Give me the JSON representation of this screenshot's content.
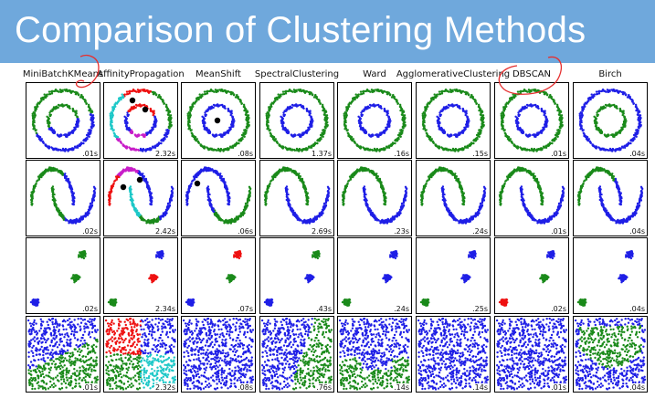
{
  "slide_title": "Comparison of Clustering Methods",
  "colors": {
    "header_bg": "#6fa8dc",
    "blue": "#1f1fe6",
    "green": "#1a8a1a",
    "red": "#ee1111",
    "cyan": "#1ec8c8",
    "magenta": "#c81ec8",
    "black": "#000000",
    "annotation": "#e53030"
  },
  "datasets": [
    "noisy-circles",
    "noisy-moons",
    "blobs",
    "no-structure"
  ],
  "methods": [
    {
      "name": "MiniBatchKMeans",
      "times": [
        ".01s",
        ".02s",
        ".02s",
        ".01s"
      ],
      "annotated": true
    },
    {
      "name": "AffinityPropagation",
      "times": [
        "2.32s",
        "2.42s",
        "2.34s",
        "2.32s"
      ],
      "annotated": false
    },
    {
      "name": "MeanShift",
      "times": [
        ".08s",
        ".06s",
        ".07s",
        ".08s"
      ],
      "annotated": false
    },
    {
      "name": "SpectralClustering",
      "times": [
        "1.37s",
        "2.69s",
        ".43s",
        ".76s"
      ],
      "annotated": false
    },
    {
      "name": "Ward",
      "times": [
        ".16s",
        ".23s",
        ".24s",
        ".14s"
      ],
      "annotated": false
    },
    {
      "name": "AgglomerativeClustering",
      "times": [
        ".15s",
        ".24s",
        ".25s",
        ".14s"
      ],
      "annotated": false
    },
    {
      "name": "DBSCAN",
      "times": [
        ".01s",
        ".01s",
        ".02s",
        ".01s"
      ],
      "annotated": true
    },
    {
      "name": "Birch",
      "times": [
        ".04s",
        ".04s",
        ".04s",
        ".04s"
      ],
      "annotated": false
    }
  ]
}
